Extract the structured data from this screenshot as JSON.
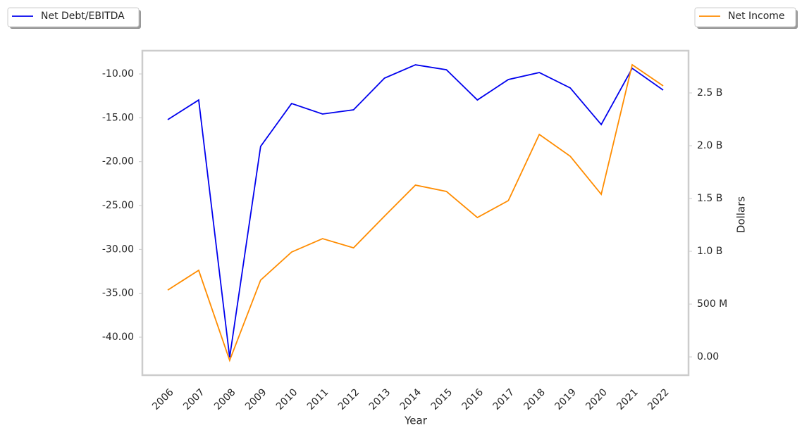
{
  "chart_data": {
    "type": "line",
    "x_label": "Year",
    "y2_label": "Dollars",
    "categories": [
      "2006",
      "2007",
      "2008",
      "2009",
      "2010",
      "2011",
      "2012",
      "2013",
      "2014",
      "2015",
      "2016",
      "2017",
      "2018",
      "2019",
      "2020",
      "2021",
      "2022"
    ],
    "series": [
      {
        "name": "Net Debt/EBITDA",
        "color": "#0000ee",
        "axis": "y",
        "values": [
          -15.21,
          -12.97,
          -42.3,
          -18.26,
          -13.37,
          -14.57,
          -14.09,
          -10.48,
          -8.96,
          -9.52,
          -12.97,
          -10.64,
          -9.84,
          -11.6,
          -15.77,
          -9.36,
          -11.84
        ]
      },
      {
        "name": "Net Income",
        "color": "#ff8c00",
        "axis": "y2",
        "values": [
          633000000,
          820000000,
          -33000000,
          727000000,
          993000000,
          1120000000,
          1033000000,
          1333000000,
          1627000000,
          1567000000,
          1320000000,
          1480000000,
          2107000000,
          1900000000,
          1540000000,
          2767000000,
          2567000000
        ]
      }
    ],
    "ylim": [
      -44.33,
      -7.35
    ],
    "yticks": [
      {
        "value": -40,
        "label": "-40.00"
      },
      {
        "value": -35,
        "label": "-35.00"
      },
      {
        "value": -30,
        "label": "-30.00"
      },
      {
        "value": -25,
        "label": "-25.00"
      },
      {
        "value": -20,
        "label": "-20.00"
      },
      {
        "value": -15,
        "label": "-15.00"
      },
      {
        "value": -10,
        "label": "-10.00"
      }
    ],
    "y2lim": [
      -173000000,
      2900000000
    ],
    "y2ticks": [
      {
        "value": 0,
        "label": "0.00"
      },
      {
        "value": 500000000,
        "label": "500 M"
      },
      {
        "value": 1000000000,
        "label": "1.0 B"
      },
      {
        "value": 1500000000,
        "label": "1.5 B"
      },
      {
        "value": 2000000000,
        "label": "2.0 B"
      },
      {
        "value": 2500000000,
        "label": "2.5 B"
      }
    ],
    "grid": false
  }
}
